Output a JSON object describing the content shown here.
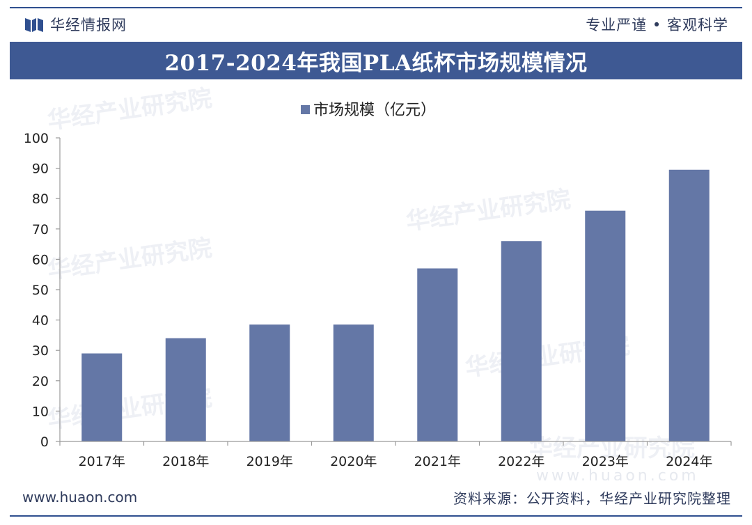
{
  "header": {
    "brand_name": "华经情报网",
    "slogan": "专业严谨 • 客观科学"
  },
  "title": "2017-2024年我国PLA纸杯市场规模情况",
  "watermark": "华经产业研究院",
  "watermark_url": "www.huaon.com",
  "colors": {
    "bar": "#6477a6",
    "title_band": "#3e5993",
    "frame": "#2f4f8f"
  },
  "chart_data": {
    "type": "bar",
    "categories": [
      "2017年",
      "2018年",
      "2019年",
      "2020年",
      "2021年",
      "2022年",
      "2023年",
      "2024年"
    ],
    "series": [
      {
        "name": "市场规模（亿元）",
        "values": [
          29,
          34,
          38.5,
          38.5,
          57,
          66,
          76,
          89.5
        ]
      }
    ],
    "ylim": [
      0,
      100
    ],
    "yticks": [
      0,
      10,
      20,
      30,
      40,
      50,
      60,
      70,
      80,
      90,
      100
    ],
    "grid": false,
    "legend": "top-center"
  },
  "footer": {
    "url": "www.huaon.com",
    "source": "资料来源：公开资料，华经产业研究院整理"
  }
}
